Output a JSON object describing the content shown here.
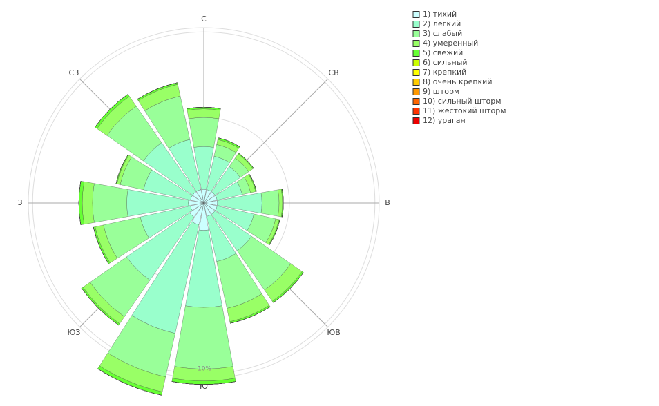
{
  "chart_data": {
    "type": "windrose",
    "categories": [
      "С",
      null,
      "СВ",
      null,
      "В",
      null,
      "ЮВ",
      null,
      "Ю",
      null,
      "ЮЗ",
      null,
      "З",
      null,
      "СЗ",
      null
    ],
    "rlim": [
      0,
      10.25
    ],
    "rgrid": [
      5,
      10
    ],
    "rlabels": [
      {
        "value": 10,
        "label": "10%"
      }
    ],
    "series": [
      {
        "name": "1) тихий",
        "color": "#ccffff",
        "values": [
          0.8,
          0.8,
          0.8,
          0.8,
          0.8,
          0.8,
          0.8,
          0.8,
          1.6,
          1.3,
          1.0,
          0.8,
          0.9,
          0.8,
          0.8,
          0.8
        ]
      },
      {
        "name": "2) легкий",
        "color": "#99ffcc",
        "values": [
          2.5,
          2.0,
          1.8,
          1.5,
          2.6,
          2.2,
          2.6,
          2.7,
          4.5,
          6.5,
          4.5,
          3.0,
          3.6,
          2.8,
          3.5,
          3.0
        ]
      },
      {
        "name": "3) слабый",
        "color": "#99ff99",
        "values": [
          1.7,
          0.7,
          0.6,
          0.5,
          1.0,
          1.3,
          2.8,
          2.8,
          3.6,
          2.6,
          2.6,
          2.2,
          2.0,
          1.4,
          2.6,
          2.6
        ]
      },
      {
        "name": "4) умеренный",
        "color": "#99ff66",
        "values": [
          0.5,
          0.3,
          0.3,
          0.3,
          0.2,
          0.2,
          0.8,
          0.8,
          0.7,
          0.9,
          0.5,
          0.5,
          0.6,
          0.2,
          0.7,
          0.7
        ]
      },
      {
        "name": "5) свежий",
        "color": "#66ff33",
        "values": [
          0.1,
          0.1,
          0.05,
          0.05,
          0.05,
          0.05,
          0.1,
          0.1,
          0.2,
          0.2,
          0.1,
          0.1,
          0.2,
          0.05,
          0.15,
          0.1
        ]
      },
      {
        "name": "6) сильный",
        "color": "#ccff00",
        "values": [
          0,
          0,
          0,
          0,
          0,
          0,
          0,
          0,
          0,
          0,
          0,
          0,
          0,
          0,
          0,
          0
        ]
      },
      {
        "name": "7) крепкий",
        "color": "#ffff00",
        "values": [
          0,
          0,
          0,
          0,
          0,
          0,
          0,
          0,
          0,
          0,
          0,
          0,
          0,
          0,
          0,
          0
        ]
      },
      {
        "name": "8) очень крепкий",
        "color": "#ffcc00",
        "values": [
          0,
          0,
          0,
          0,
          0,
          0,
          0,
          0,
          0,
          0,
          0,
          0,
          0,
          0,
          0,
          0
        ]
      },
      {
        "name": "9) шторм",
        "color": "#ff9900",
        "values": [
          0,
          0,
          0,
          0,
          0,
          0,
          0,
          0,
          0,
          0,
          0,
          0,
          0,
          0,
          0,
          0
        ]
      },
      {
        "name": "10) сильный шторм",
        "color": "#ff6600",
        "values": [
          0,
          0,
          0,
          0,
          0,
          0,
          0,
          0,
          0,
          0,
          0,
          0,
          0,
          0,
          0,
          0
        ]
      },
      {
        "name": "11) жестокий шторм",
        "color": "#ff3300",
        "values": [
          0,
          0,
          0,
          0,
          0,
          0,
          0,
          0,
          0,
          0,
          0,
          0,
          0,
          0,
          0,
          0
        ]
      },
      {
        "name": "12) ураган",
        "color": "#ee0000",
        "values": [
          0,
          0,
          0,
          0,
          0,
          0,
          0,
          0,
          0,
          0,
          0,
          0,
          0,
          0,
          0,
          0
        ]
      }
    ]
  }
}
